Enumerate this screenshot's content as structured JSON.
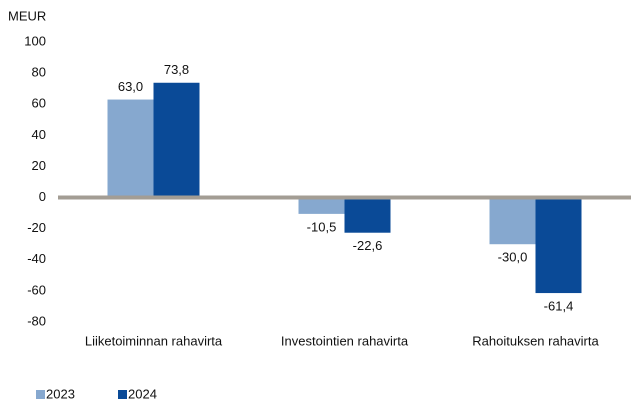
{
  "chart_data": {
    "type": "bar",
    "y_label": "MEUR",
    "categories": [
      "Liiketoiminnan rahavirta",
      "Investointien rahavirta",
      "Rahoituksen rahavirta"
    ],
    "series": [
      {
        "name": "2023",
        "color": "#86a8cf",
        "values": [
          63.0,
          -10.5,
          -30.0
        ],
        "value_labels": [
          "63,0",
          "-10,5",
          "-30,0"
        ]
      },
      {
        "name": "2024",
        "color": "#0a4a97",
        "values": [
          73.8,
          -22.6,
          -61.4
        ],
        "value_labels": [
          "73,8",
          "-22,6",
          "-61,4"
        ]
      }
    ],
    "ylim": [
      -80,
      100
    ],
    "yticks": [
      -80,
      -60,
      -40,
      -20,
      0,
      20,
      40,
      60,
      80,
      100
    ],
    "zero_line_color": "#a39d94"
  }
}
